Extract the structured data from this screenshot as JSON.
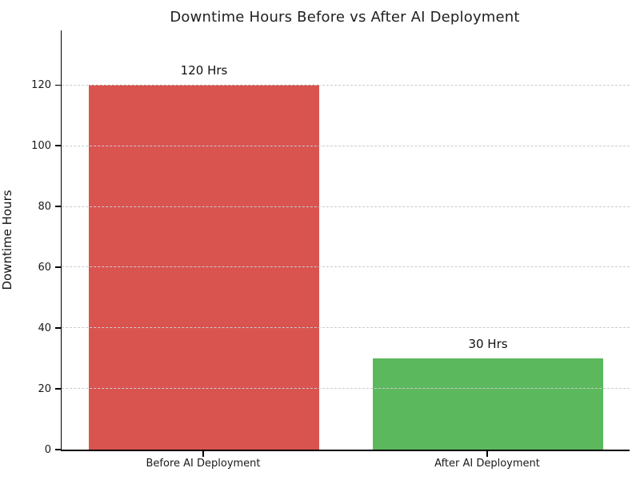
{
  "background_color": "#ffffff",
  "chart_data": {
    "type": "bar",
    "title": "Downtime Hours Before vs After AI Deployment",
    "categories": [
      "Before AI Deployment",
      "After AI Deployment"
    ],
    "values": [
      120,
      30
    ],
    "bar_labels": [
      "120 Hrs",
      "30 Hrs"
    ],
    "bar_colors": [
      "#d9534f",
      "#5cb85c"
    ],
    "xlabel": "",
    "ylabel": "Downtime Hours",
    "ylim": [
      0,
      138
    ],
    "yticks": [
      0,
      20,
      40,
      60,
      80,
      100,
      120
    ],
    "grid": {
      "axis": "y",
      "style": "dashed",
      "color": "#cccccc",
      "drawn_above_bars": true
    },
    "legend": "none",
    "spines": [
      "left",
      "bottom"
    ]
  }
}
